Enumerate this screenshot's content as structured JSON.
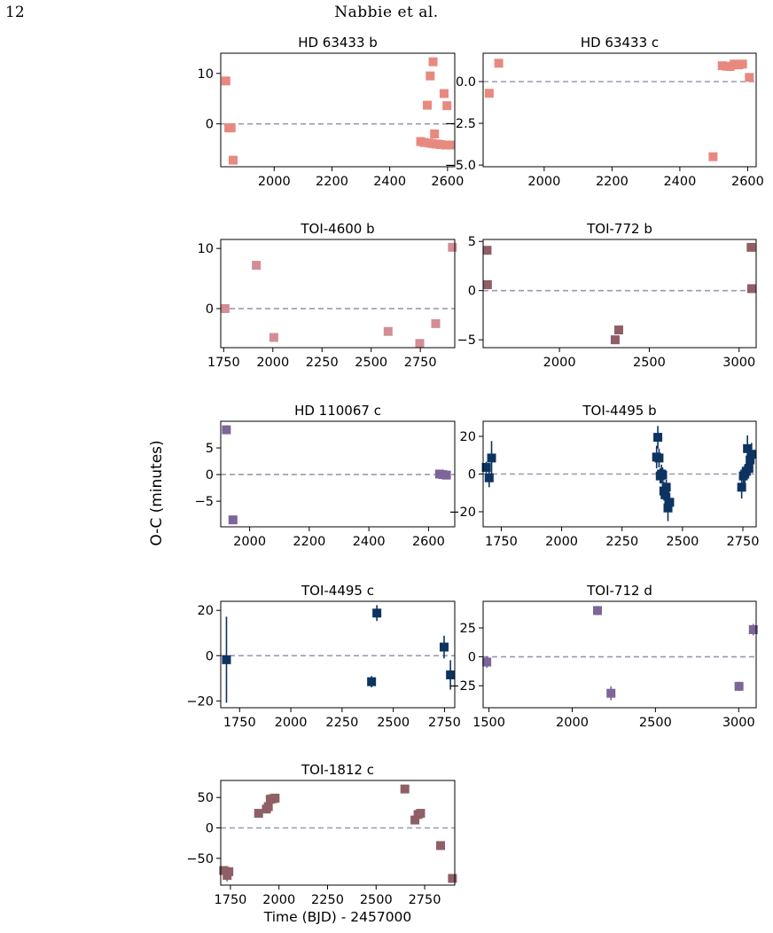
{
  "page": {
    "number": "12",
    "running_head": "Nabbie et al."
  },
  "figure": {
    "ylabel": "O-C (minutes)",
    "xlabel": "Time (BJD) - 2457000"
  },
  "colors": {
    "zero_line": "#9a98b4"
  },
  "chart_data": [
    {
      "type": "scatter",
      "title": "HD 63433 b",
      "color": "#e8897f",
      "xlabel": "",
      "xlim": [
        1815,
        2625
      ],
      "ylim": [
        -8.5,
        14
      ],
      "xticks": [
        2000,
        2200,
        2400,
        2600
      ],
      "yticks": [
        0,
        10
      ],
      "points": [
        [
          1833,
          8.5
        ],
        [
          1843,
          -0.8
        ],
        [
          1851,
          -0.8
        ],
        [
          1858,
          -7.2
        ],
        [
          2507,
          -3.5
        ],
        [
          2519,
          -3.7
        ],
        [
          2530,
          3.7
        ],
        [
          2536,
          -3.8
        ],
        [
          2540,
          9.5
        ],
        [
          2547,
          -3.9
        ],
        [
          2550,
          12.3
        ],
        [
          2555,
          -2.0
        ],
        [
          2558,
          -4.0
        ],
        [
          2565,
          -4.0
        ],
        [
          2575,
          -4.1
        ],
        [
          2588,
          6.0
        ],
        [
          2594,
          -4.2
        ],
        [
          2598,
          3.6
        ],
        [
          2608,
          -4.2
        ]
      ]
    },
    {
      "type": "scatter",
      "title": "HD 63433 c",
      "color": "#e8897f",
      "xlabel": "",
      "xlim": [
        1820,
        2625
      ],
      "ylim": [
        -5.1,
        1.7
      ],
      "xticks": [
        2000,
        2200,
        2400,
        2600
      ],
      "yticks": [
        0.0,
        -2.5,
        -5.0
      ],
      "ytick_labels": [
        "0.0",
        "−2.5",
        "−5.0"
      ],
      "points": [
        [
          1838,
          -0.7
        ],
        [
          1866,
          1.1
        ],
        [
          2498,
          -4.5
        ],
        [
          2525,
          0.95
        ],
        [
          2538,
          0.92
        ],
        [
          2548,
          0.9
        ],
        [
          2560,
          1.05
        ],
        [
          2574,
          1.0
        ],
        [
          2585,
          1.05
        ],
        [
          2605,
          0.25
        ]
      ]
    },
    {
      "type": "scatter",
      "title": "TOI-4600 b",
      "color": "#d28d97",
      "xlabel": "",
      "xlim": [
        1735,
        2925
      ],
      "ylim": [
        -6.5,
        11.5
      ],
      "xticks": [
        1750,
        2000,
        2250,
        2500,
        2750
      ],
      "yticks": [
        0,
        10
      ],
      "points": [
        [
          1757,
          0.0
        ],
        [
          1916,
          7.2
        ],
        [
          2005,
          -4.8
        ],
        [
          2586,
          -3.8
        ],
        [
          2747,
          -5.8
        ],
        [
          2828,
          -2.5
        ],
        [
          2913,
          10.2
        ]
      ]
    },
    {
      "type": "scatter",
      "title": "TOI-772 b",
      "color": "#8f5f65",
      "xlabel": "",
      "xlim": [
        1575,
        3095
      ],
      "ylim": [
        -5.8,
        5.2
      ],
      "xticks": [
        2000,
        2500,
        3000
      ],
      "yticks": [
        5,
        0,
        -5
      ],
      "ytick_labels": [
        "5",
        "0",
        "−5"
      ],
      "points": [
        [
          1597,
          4.1
        ],
        [
          1599,
          0.6
        ],
        [
          2310,
          -5.0
        ],
        [
          2330,
          -4.0
        ],
        [
          3067,
          4.4
        ],
        [
          3070,
          0.2
        ]
      ]
    },
    {
      "type": "scatter",
      "title": "HD 110067 c",
      "color": "#7d6499",
      "xlabel": "",
      "xlim": [
        1903,
        2688
      ],
      "ylim": [
        -9.8,
        10
      ],
      "xticks": [
        2000,
        2200,
        2400,
        2600
      ],
      "yticks": [
        5,
        0,
        -5
      ],
      "ytick_labels": [
        "5",
        "0",
        "−5"
      ],
      "points": [
        [
          1922,
          8.4
        ],
        [
          1944,
          -8.5
        ],
        [
          2637,
          0.1
        ],
        [
          2648,
          0.0
        ],
        [
          2660,
          -0.1
        ]
      ]
    },
    {
      "type": "scatter",
      "title": "TOI-4495 b",
      "color": "#0d3460",
      "xlabel": "",
      "xlim": [
        1675,
        2805
      ],
      "ylim": [
        -28,
        28
      ],
      "xticks": [
        1750,
        2000,
        2250,
        2500,
        2750
      ],
      "yticks": [
        20,
        0,
        -20
      ],
      "ytick_labels": [
        "20",
        "0",
        "−20"
      ],
      "points": [
        [
          1688,
          3.5,
          3
        ],
        [
          1700,
          -2,
          5
        ],
        [
          1710,
          8.5,
          9
        ],
        [
          2393,
          9,
          6
        ],
        [
          2398,
          19.5,
          6
        ],
        [
          2403,
          8.5,
          5
        ],
        [
          2408,
          -1,
          4
        ],
        [
          2413,
          0,
          5
        ],
        [
          2418,
          -0.5,
          4
        ],
        [
          2423,
          -9,
          5
        ],
        [
          2428,
          -11,
          5
        ],
        [
          2433,
          -7,
          4
        ],
        [
          2440,
          -18,
          7
        ],
        [
          2447,
          -15,
          5
        ],
        [
          2745,
          -7,
          6
        ],
        [
          2752,
          -1,
          4
        ],
        [
          2758,
          0,
          5
        ],
        [
          2764,
          1.5,
          3
        ],
        [
          2769,
          13.5,
          7
        ],
        [
          2775,
          3,
          4
        ],
        [
          2780,
          7.5,
          5
        ],
        [
          2786,
          10.5,
          6
        ]
      ]
    },
    {
      "type": "scatter",
      "title": "TOI-4495 c",
      "color": "#0d3460",
      "xlabel": "",
      "xlim": [
        1658,
        2800
      ],
      "ylim": [
        -23,
        24
      ],
      "xticks": [
        1750,
        2000,
        2250,
        2500,
        2750
      ],
      "yticks": [
        20,
        0,
        -20
      ],
      "ytick_labels": [
        "20",
        "0",
        "−20"
      ],
      "points": [
        [
          1686,
          -1.8,
          19
        ],
        [
          2394,
          -11.5,
          2.5
        ],
        [
          2420,
          18.8,
          3.5
        ],
        [
          2748,
          3.8,
          5
        ],
        [
          2779,
          -8.5,
          6.5
        ]
      ]
    },
    {
      "type": "scatter",
      "title": "TOI-712 d",
      "color": "#7d6499",
      "xlabel": "",
      "xlim": [
        1465,
        3105
      ],
      "ylim": [
        -44,
        48
      ],
      "xticks": [
        1500,
        2000,
        2500,
        3000
      ],
      "yticks": [
        25,
        0,
        -25
      ],
      "ytick_labels": [
        "25",
        "0",
        "−25"
      ],
      "points": [
        [
          1487,
          -4.5,
          5
        ],
        [
          2152,
          40,
          4
        ],
        [
          2233,
          -31.5,
          6
        ],
        [
          3002,
          -25.5,
          4
        ],
        [
          3088,
          23.5,
          5
        ]
      ]
    },
    {
      "type": "scatter",
      "title": "TOI-1812 c",
      "color": "#8f5f65",
      "xlabel": "Time (BJD) - 2457000",
      "xlim": [
        1700,
        2905
      ],
      "ylim": [
        -94,
        78
      ],
      "xticks": [
        1750,
        2000,
        2250,
        2500,
        2750
      ],
      "yticks": [
        50,
        0,
        -50
      ],
      "ytick_labels": [
        "50",
        "0",
        "−50"
      ],
      "points": [
        [
          1715,
          -70,
          6
        ],
        [
          1733,
          -78,
          10
        ],
        [
          1742,
          -72,
          8
        ],
        [
          1895,
          24,
          4
        ],
        [
          1935,
          31,
          5
        ],
        [
          1945,
          35,
          5
        ],
        [
          1955,
          47,
          4
        ],
        [
          1968,
          48,
          4
        ],
        [
          1980,
          49,
          4
        ],
        [
          2648,
          64,
          3
        ],
        [
          2700,
          13,
          4
        ],
        [
          2716,
          22,
          4
        ],
        [
          2729,
          24,
          4
        ],
        [
          2832,
          -29,
          4
        ],
        [
          2893,
          -83,
          4
        ]
      ]
    }
  ]
}
